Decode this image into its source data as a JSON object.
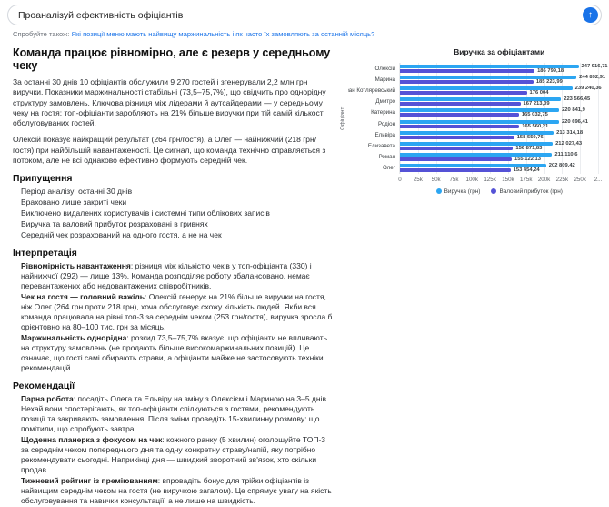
{
  "composer": {
    "input_value": "Проаналізуй ефективність офіціантів",
    "send_icon": "↑"
  },
  "suggestion": {
    "prefix": "Спробуйте також:",
    "link_text": "Які позиції меню мають найвищу маржинальність і як часто їх замовляють за останній місяць?"
  },
  "report": {
    "title": "Команда працює рівномірно, але є резерв у середньому чеку",
    "paragraphs": [
      "За останні 30 днів 10 офіціантів обслужили 9 270 гостей і згенерували 2,2 млн грн виручки. Показники маржинальності стабільні (73,5–75,7%), що свідчить про однорідну структуру замовлень. Ключова різниця між лідерами й аутсайдерами — у середньому чеку на гостя: топ-офіціанти заробляють на 21% більше виручки при тій самій кількості обслуговуваних гостей.",
      "Олексій показує найкращий результат (264 грн/гостя), а Олег — найнижчий (218 грн/гостя) при найбільшій навантаженості. Це сигнал, що команда технічно справляється з потоком, але не всі однаково ефективно формують середній чек."
    ],
    "sections": [
      {
        "heading": "Припущення",
        "items": [
          {
            "lead": "",
            "text": "Період аналізу: останні 30 днів"
          },
          {
            "lead": "",
            "text": "Враховано лише закриті чеки"
          },
          {
            "lead": "",
            "text": "Виключено видалених користувачів і системні типи облікових записів"
          },
          {
            "lead": "",
            "text": "Виручка та валовий прибуток розраховані в гривнях"
          },
          {
            "lead": "",
            "text": "Середній чек розрахований на одного гостя, а не на чек"
          }
        ]
      },
      {
        "heading": "Інтерпретація",
        "items": [
          {
            "lead": "Рівномірність навантаження",
            "text": ": різниця між кількістю чеків у топ-офіціанта (330) і найнижчої (292) — лише 13%. Команда розподіляє роботу збалансовано, немає перевантажених або недовантажених співробітників."
          },
          {
            "lead": "Чек на гостя — головний важіль",
            "text": ": Олексій генерує на 21% більше виручки на гостя, ніж Олег (264 грн проти 218 грн), хоча обслуговує схожу кількість людей. Якби вся команда працювала на рівні топ-3 за середнім чеком (253 грн/гостя), виручка зросла б орієнтовно на 80–100 тис. грн за місяць."
          },
          {
            "lead": "Маржинальність однорідна",
            "text": ": розкид 73,5–75,7% вказує, що офіціанти не впливають на структуру замовлень (не продають більше високомаржинальних позицій). Це означає, що гості самі обирають страви, а офіціанти майже не застосовують техніки рекомендацій."
          }
        ]
      },
      {
        "heading": "Рекомендації",
        "items": [
          {
            "lead": "Парна робота",
            "text": ": посадіть Олега та Ельвіру на зміну з Олексієм і Мариною на 3–5 днів. Нехай вони спостерігають, як топ-офіціанти спілкуються з гостями, рекомендують позиції та закривають замовлення. Після зміни проведіть 15-хвилинну розмову: що помітили, що спробують завтра."
          },
          {
            "lead": "Щоденна планерка з фокусом на чек",
            "text": ": кожного ранку (5 хвилин) оголошуйте ТОП-3 за середнім чеком попереднього дня та одну конкретну страву/напій, яку потрібно рекомендувати сьогодні. Наприкінці дня — швидкий зворотний зв'язок, хто скільки продав."
          },
          {
            "lead": "Тижневий рейтинг із преміюванням",
            "text": ": впровадіть бонус для трійки офіціантів із найвищим середнім чеком на гостя (не виручкою загалом). Це спрямує увагу на якість обслуговування та навички консультації, а не лише на швидкість."
          }
        ]
      }
    ]
  },
  "chart_data": {
    "type": "bar",
    "orientation": "horizontal",
    "title": "Виручка за офіціантами",
    "xlabel": "",
    "ylabel": "Офіціант",
    "grid": true,
    "legend_position": "bottom",
    "categories": [
      "Олексій",
      "Марина",
      "Іван Котляревський",
      "Дмитро",
      "Катерина",
      "Родіон",
      "Ельвіра",
      "Елизавета",
      "Роман",
      "Олег"
    ],
    "series": [
      {
        "name": "Виручка (грн)",
        "color": "#2ca6f2",
        "values": [
          247916.71,
          244892.91,
          239240.36,
          223566.45,
          220841.9,
          220696.41,
          213314.18,
          212027.43,
          211110.6,
          202809.42
        ],
        "labels": [
          "247 916,71",
          "244 892,91",
          "239 240,36",
          "223 566,45",
          "220 841,9",
          "220 696,41",
          "213 314,18",
          "212 027,43",
          "211 110,6",
          "202 809,42"
        ]
      },
      {
        "name": "Валовий прибуток (грн)",
        "color": "#5552d6",
        "values": [
          186799.18,
          185223.99,
          176004,
          167213.09,
          165032.75,
          165560.21,
          158550.76,
          156871.83,
          155122.13,
          153454.24
        ],
        "labels": [
          "186 799,18",
          "185 223,99",
          "176 004",
          "167 213,09",
          "165 032,75",
          "165 560,21",
          "158 550,76",
          "156 871,83",
          "155 122,13",
          "153 454,24"
        ]
      }
    ],
    "x_ticks": [
      {
        "label": "0",
        "value": 0
      },
      {
        "label": "25k",
        "value": 25000
      },
      {
        "label": "50k",
        "value": 50000
      },
      {
        "label": "75k",
        "value": 75000
      },
      {
        "label": "100k",
        "value": 100000
      },
      {
        "label": "125k",
        "value": 125000
      },
      {
        "label": "150k",
        "value": 150000
      },
      {
        "label": "175k",
        "value": 175000
      },
      {
        "label": "200k",
        "value": 200000
      },
      {
        "label": "225k",
        "value": 225000
      },
      {
        "label": "250k",
        "value": 250000
      },
      {
        "label": "2...",
        "value": 275000
      }
    ],
    "xlim": [
      0,
      275000
    ]
  },
  "colors": {
    "accent": "#1a73e8",
    "link": "#1a73e8",
    "bar_revenue": "#2ca6f2",
    "bar_profit": "#5552d6"
  }
}
